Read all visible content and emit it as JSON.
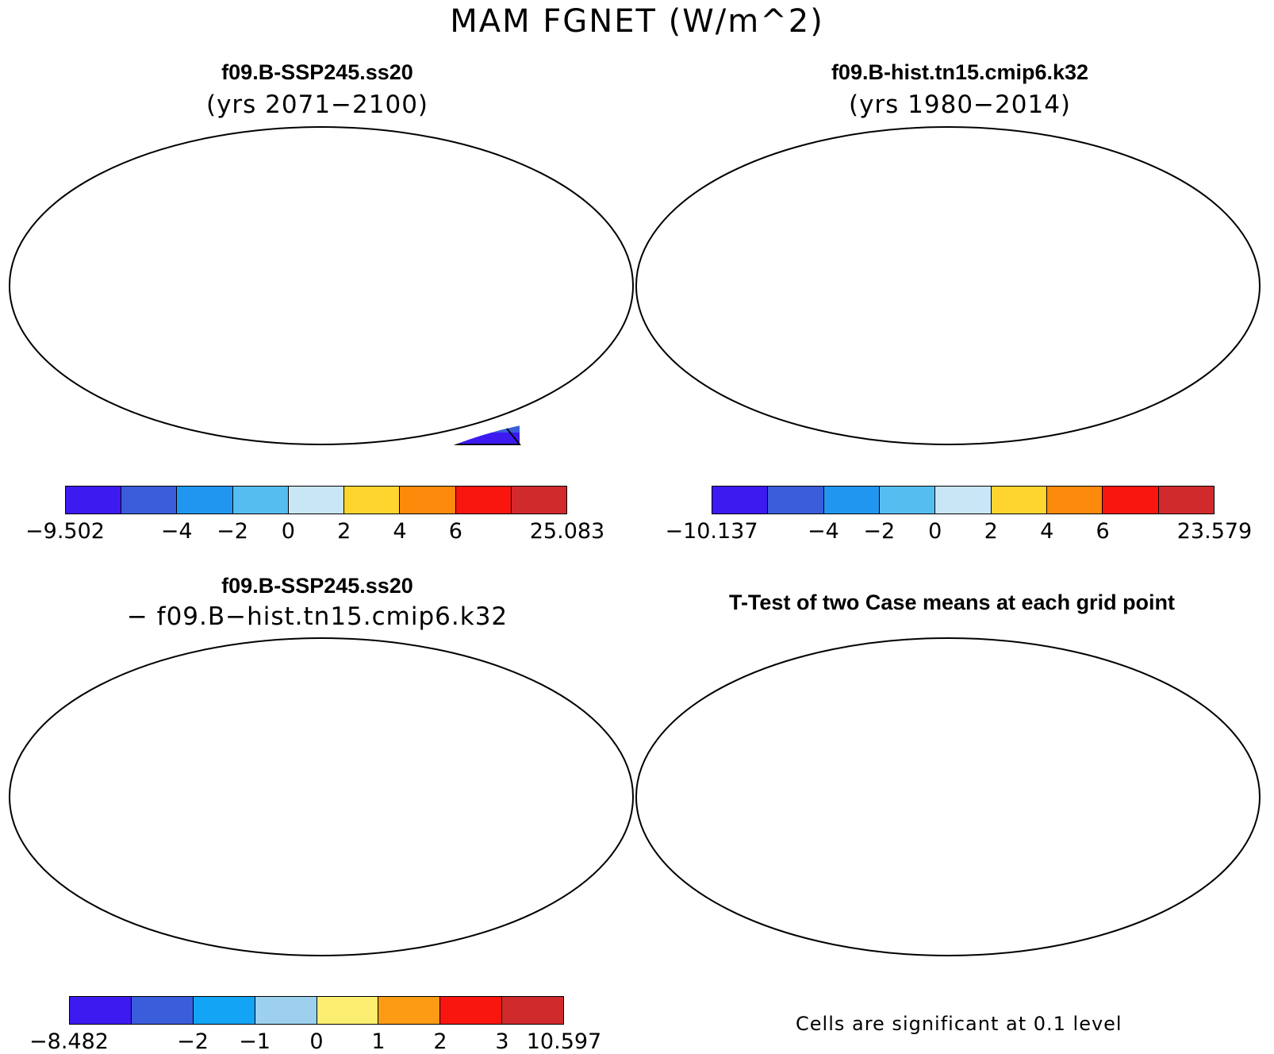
{
  "figure": {
    "title": "MAM FGNET (W/m^2)"
  },
  "panels": {
    "top_left": {
      "title": "f09.B-SSP245.ss20",
      "subtitle": "(yrs 2071−2100)"
    },
    "top_right": {
      "title": "f09.B-hist.tn15.cmip6.k32",
      "subtitle": "(yrs 1980−2014)"
    },
    "bottom_left": {
      "title": "f09.B-SSP245.ss20",
      "subtitle": "− f09.B−hist.tn15.cmip6.k32"
    },
    "bottom_right": {
      "title": "T-Test of two Case means at each grid point",
      "note": "Cells are significant at 0.1 level"
    }
  },
  "colorbars": {
    "top_left": {
      "colors": [
        "#3d1aef",
        "#3a5ddb",
        "#2196f0",
        "#56bdf0",
        "#c9e6f6",
        "#fed52e",
        "#fd8a0a",
        "#f8160e",
        "#d12a2d"
      ],
      "labels": [
        "−9.502",
        "",
        "−4",
        "−2",
        "0",
        "2",
        "4",
        "6",
        "",
        "25.083"
      ]
    },
    "top_right": {
      "colors": [
        "#3d1aef",
        "#3a5ddb",
        "#2196f0",
        "#56bdf0",
        "#c9e6f6",
        "#fed52e",
        "#fd8a0a",
        "#f8160e",
        "#d12a2d"
      ],
      "labels": [
        "−10.137",
        "",
        "−4",
        "−2",
        "0",
        "2",
        "4",
        "6",
        "",
        "23.579"
      ]
    },
    "bottom_left": {
      "colors": [
        "#3d1aef",
        "#3a5ddb",
        "#14a4f5",
        "#9dd0ee",
        "#fcee71",
        "#fd9b14",
        "#f8160e",
        "#d12a2d"
      ],
      "labels": [
        "−8.482",
        "",
        "−2",
        "−1",
        "0",
        "1",
        "2",
        "3",
        "10.597"
      ]
    }
  },
  "map_colors": {
    "ocean": "#ffffff",
    "coast": "#000000",
    "significant": "#ff0000"
  }
}
